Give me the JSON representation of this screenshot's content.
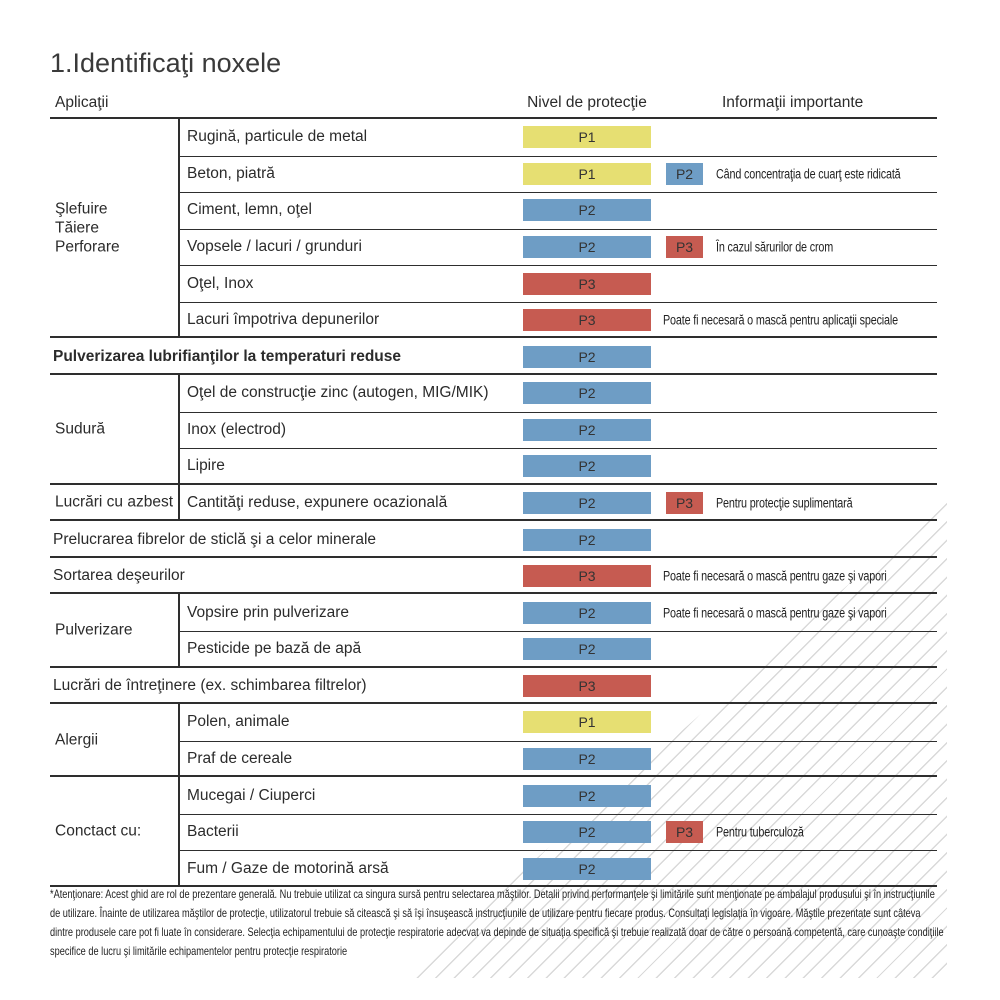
{
  "title": "1.Identificaţi noxele",
  "badge_colors": {
    "P1": "#e6df72",
    "P2": "#6e9dc5",
    "P3": "#c65b51"
  },
  "header": {
    "applications": "Aplicaţii",
    "protection_level": "Nivel de protecţie",
    "important_info": "Informaţii importante"
  },
  "table": {
    "groups": [
      {
        "label": "Şlefuire\nTăiere\nPerforare",
        "items": [
          {
            "label": "Rugină, particule de metal",
            "level": "P1"
          },
          {
            "label": "Beton, piatră",
            "level": "P1",
            "level2": "P2",
            "info": "Când concentraţia de cuarţ este ridicată"
          },
          {
            "label": "Ciment, lemn, oţel",
            "level": "P2"
          },
          {
            "label": "Vopsele / lacuri / grunduri",
            "level": "P2",
            "level2": "P3",
            "info": "În cazul sărurilor de crom"
          },
          {
            "label": "Oţel, Inox",
            "level": "P3"
          },
          {
            "label": "Lacuri împotriva depunerilor",
            "level": "P3",
            "info": "Poate fi necesară o mască pentru aplicaţii speciale"
          }
        ]
      },
      {
        "label": "",
        "items": [
          {
            "label": "Pulverizarea lubrifianţilor la temperaturi reduse",
            "level": "P2",
            "bold": true
          }
        ]
      },
      {
        "label": "Sudură",
        "items": [
          {
            "label": "Oţel de construcţie zinc (autogen, MIG/MIK)",
            "level": "P2"
          },
          {
            "label": "Inox (electrod)",
            "level": "P2"
          },
          {
            "label": "Lipire",
            "level": "P2"
          }
        ]
      },
      {
        "label": "Lucrări cu azbest",
        "items": [
          {
            "label": "Cantităţi reduse, expunere ocazională",
            "level": "P2",
            "level2": "P3",
            "info": "Pentru protecţie suplimentară"
          }
        ]
      },
      {
        "label": "",
        "items": [
          {
            "label": "Prelucrarea fibrelor de sticlă şi a celor minerale",
            "level": "P2"
          }
        ]
      },
      {
        "label": "",
        "items": [
          {
            "label": "Sortarea deşeurilor",
            "level": "P3",
            "info": "Poate fi necesară o mască pentru gaze şi vapori"
          }
        ]
      },
      {
        "label": "Pulverizare",
        "items": [
          {
            "label": "Vopsire prin pulverizare",
            "level": "P2",
            "info": "Poate fi necesară o mască pentru gaze şi vapori"
          },
          {
            "label": "Pesticide pe bază de apă",
            "level": "P2"
          }
        ]
      },
      {
        "label": "",
        "items": [
          {
            "label": "Lucrări de întreţinere (ex. schimbarea filtrelor)",
            "level": "P3"
          }
        ]
      },
      {
        "label": "Alergii",
        "items": [
          {
            "label": "Polen, animale",
            "level": "P1"
          },
          {
            "label": "Praf de cereale",
            "level": "P2"
          }
        ]
      },
      {
        "label": "Conctact cu:",
        "items": [
          {
            "label": "Mucegai / Ciuperci",
            "level": "P2"
          },
          {
            "label": "Bacterii",
            "level": "P2",
            "level2": "P3",
            "info": "Pentru tuberculoză"
          },
          {
            "label": "Fum / Gaze de motorină arsă",
            "level": "P2"
          }
        ]
      }
    ]
  },
  "footnote": {
    "lines": [
      "*Atenţionare: Acest ghid are rol de prezentare generală. Nu trebuie utilizat ca singura sursă pentru selectarea măştilor. Detalii privind performanţele şi limitările sunt menţionate pe ambalajul produsului şi în instrucţiunile",
      "de utilizare. Înainte de utilizarea măştilor de protecţie, utilizatorul trebuie să citească şi să îşi însuşească instrucţiunile de utilizare pentru fiecare produs. Consultaţi legislaţia în vigoare. Măştile prezentate sunt câteva",
      "dintre produsele care pot fi luate în considerare. Selecţia echipamentului de protecţie respiratorie adecvat va depinde de situaţia specifică şi trebuie realizată doar de către o persoană competentă, care cunoaşte condiţiile",
      "specifice de lucru şi limitările echipamentelor pentru protecţie respiratorie"
    ]
  }
}
